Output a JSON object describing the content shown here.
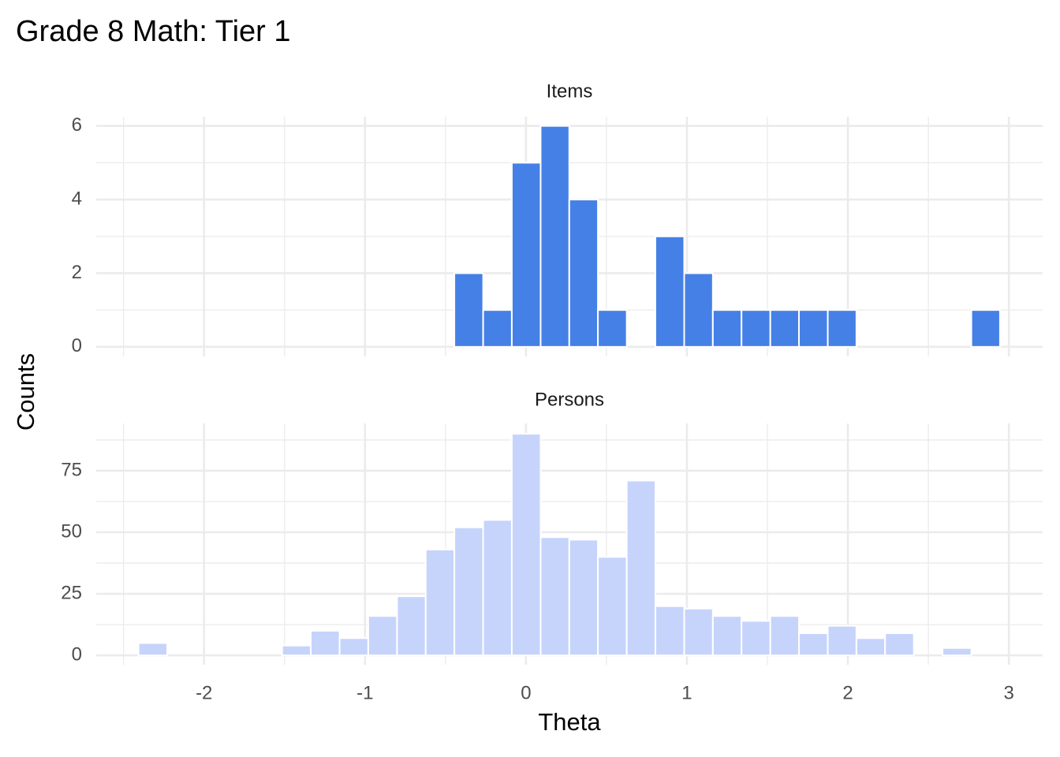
{
  "chart_data": {
    "type": "histogram",
    "title": "Grade 8 Math: Tier 1",
    "x_label": "Theta",
    "y_label": "Counts",
    "bins": [
      -2.407,
      -2.229,
      -2.05,
      -1.872,
      -1.693,
      -1.515,
      -1.337,
      -1.158,
      -0.98,
      -0.801,
      -0.623,
      -0.445,
      -0.266,
      -0.088,
      0.091,
      0.269,
      0.447,
      0.626,
      0.804,
      0.983,
      1.161,
      1.339,
      1.518,
      1.696,
      1.875,
      2.053,
      2.231,
      2.41,
      2.588,
      2.767,
      2.945
    ],
    "xlim": [
      -2.67,
      3.21
    ],
    "xticks": [
      -2,
      -1,
      0,
      1,
      2,
      3
    ],
    "grid": true,
    "panels": [
      {
        "title": "Items",
        "color": "#4580e6",
        "ylim": [
          -0.26,
          6.25
        ],
        "yticks": [
          0,
          2,
          4,
          6
        ],
        "values": [
          0,
          0,
          0,
          0,
          0,
          0,
          0,
          0,
          0,
          0,
          0,
          2,
          1,
          5,
          6,
          4,
          1,
          0,
          3,
          2,
          1,
          1,
          1,
          1,
          1,
          0,
          0,
          0,
          0,
          1
        ]
      },
      {
        "title": "Persons",
        "color": "#c6d4fc",
        "ylim": [
          -3.8,
          94.2
        ],
        "yticks": [
          0,
          25,
          50,
          75
        ],
        "values": [
          5,
          0,
          0,
          0,
          0,
          4,
          10,
          7,
          16,
          24,
          43,
          52,
          55,
          90,
          48,
          47,
          40,
          71,
          20,
          19,
          16,
          14,
          16,
          9,
          12,
          7,
          9,
          0,
          3,
          0
        ]
      }
    ]
  }
}
